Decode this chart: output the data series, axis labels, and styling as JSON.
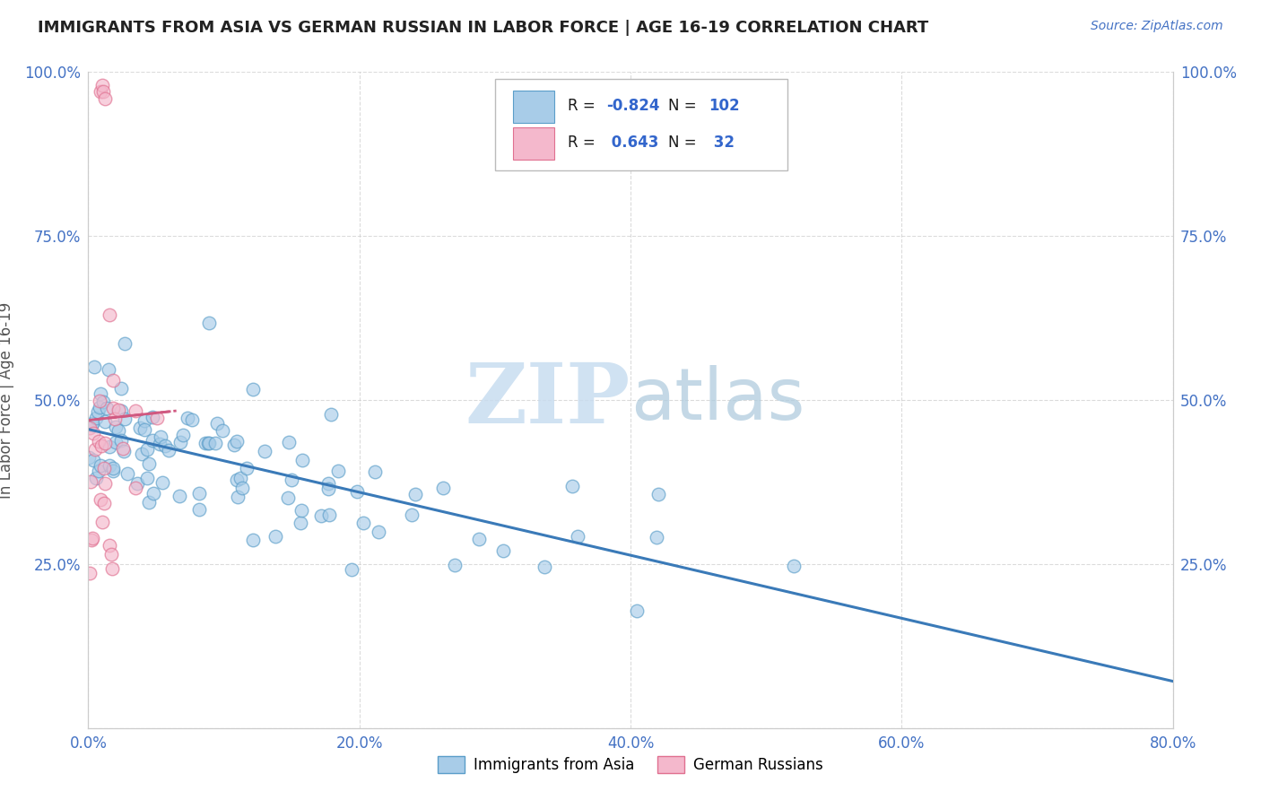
{
  "title": "IMMIGRANTS FROM ASIA VS GERMAN RUSSIAN IN LABOR FORCE | AGE 16-19 CORRELATION CHART",
  "source_text": "Source: ZipAtlas.com",
  "ylabel": "In Labor Force | Age 16-19",
  "xlim": [
    0.0,
    0.8
  ],
  "ylim": [
    0.0,
    1.0
  ],
  "xticks": [
    0.0,
    0.2,
    0.4,
    0.6,
    0.8
  ],
  "xtick_labels": [
    "0.0%",
    "20.0%",
    "40.0%",
    "60.0%",
    "80.0%"
  ],
  "yticks": [
    0.0,
    0.25,
    0.5,
    0.75,
    1.0
  ],
  "ytick_labels_left": [
    "",
    "25.0%",
    "50.0%",
    "75.0%",
    "100.0%"
  ],
  "ytick_labels_right": [
    "",
    "25.0%",
    "50.0%",
    "75.0%",
    "100.0%"
  ],
  "blue_color": "#a8cce8",
  "blue_edge": "#5b9ec9",
  "blue_line": "#3a7ab8",
  "pink_color": "#f4b8cc",
  "pink_edge": "#e07090",
  "pink_line": "#d05880",
  "R_blue": -0.824,
  "N_blue": 102,
  "R_pink": 0.643,
  "N_pink": 32,
  "watermark_zip": "ZIP",
  "watermark_atlas": "atlas",
  "watermark_color_zip": "#c5d8ec",
  "watermark_color_atlas": "#a8c8e0",
  "background_color": "#ffffff",
  "grid_color": "#cccccc",
  "title_color": "#222222",
  "source_color": "#4472c4",
  "axis_label_color": "#555555",
  "tick_color": "#4472c4",
  "legend_label_color": "#1a1a1a",
  "legend_value_color": "#3366cc"
}
